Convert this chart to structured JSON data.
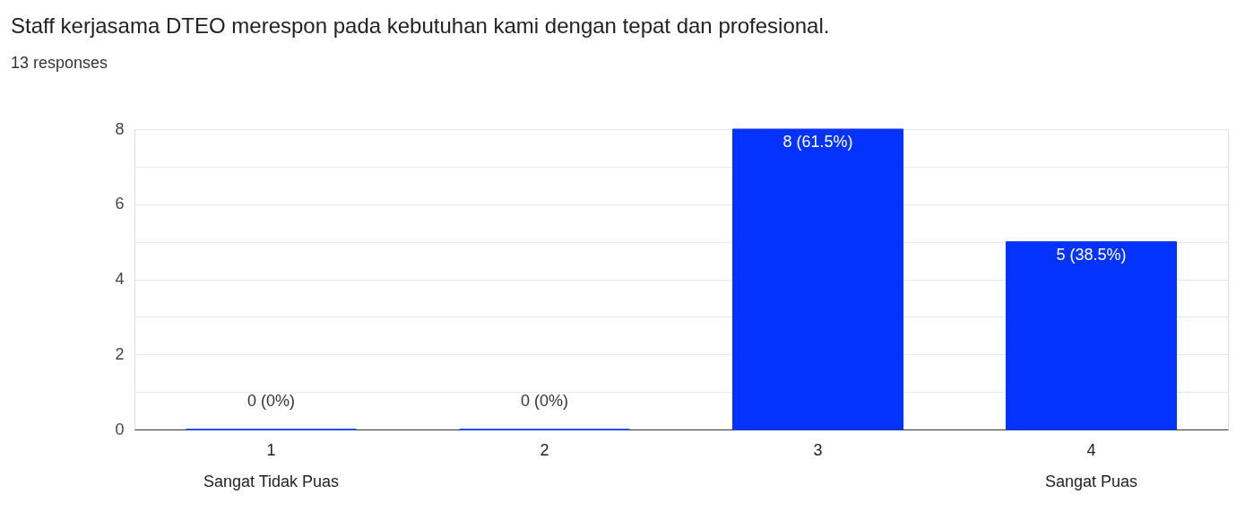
{
  "chart_data": {
    "type": "bar",
    "title": "Staff kerjasama DTEO merespon pada kebutuhan kami dengan tepat dan profesional.",
    "subtitle": "13 responses",
    "categories": [
      "1",
      "2",
      "3",
      "4"
    ],
    "values": [
      0,
      0,
      8,
      5
    ],
    "color": "#0433ff",
    "value_labels": [
      "0 (0%)",
      "0 (0%)",
      "8 (61.5%)",
      "5 (38.5%)"
    ],
    "ylim": [
      0,
      8
    ],
    "yticks": [
      0,
      {
        "value": 1,
        "label": null
      },
      2,
      {
        "value": 3,
        "label": null
      },
      4,
      {
        "value": 5,
        "label": null
      },
      6,
      {
        "value": 7,
        "label": null
      },
      8
    ],
    "grid": "y",
    "annotations": [
      "Sangat Tidak Puas",
      "Sangat Puas"
    ]
  }
}
